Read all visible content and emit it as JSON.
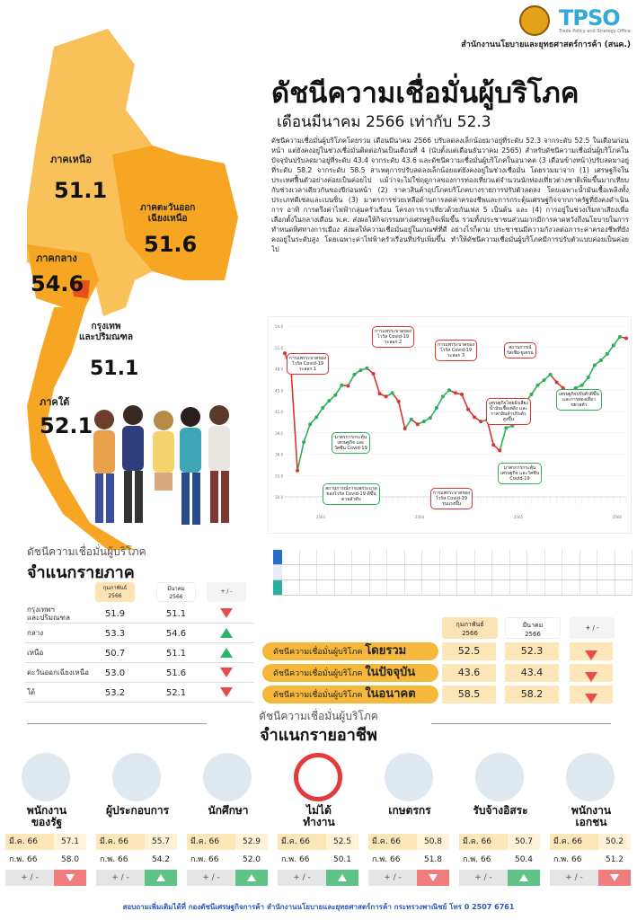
{
  "header": {
    "logo_text": "TPSO",
    "logo_sub": "Trade Policy and Strategy Office",
    "agency": "สำนักงานนโยบายและยุทธศาสตร์การค้า (สนค.)"
  },
  "title": "ดัชนีความเชื่อมั่นผู้บริโภค",
  "subtitle": "เดือนมีนาคม 2566 เท่ากับ 52.3",
  "body": "ดัชนีความเชื่อมั่นผู้บริโภคโดยรวม เดือนมีนาคม 2566 ปรับลดลงเล็กน้อยมาอยู่ที่ระดับ 52.3 จากระดับ 52.5 ในเดือนก่อนหน้า แต่ยังคงอยู่ในช่วงเชื่อมั่นติดต่อกันเป็นเดือนที่ 4 (นับตั้งแต่เดือนธันวาคม 2565) สำหรับดัชนีความเชื่อมั่นผู้บริโภคในปัจจุบันปรับลดมาอยู่ที่ระดับ 43.4 จากระดับ 43.6 และดัชนีความเชื่อมั่นผู้บริโภคในอนาคต (3 เดือนข้างหน้า)ปรับลดมาอยู่ที่ระดับ 58.2 จากระดับ 58.5 สาเหตุการปรับลดลงเล็กน้อยแต่ยังคงอยู่ในช่วงเชื่อมั่น โดยรวมมาจาก (1) เศรษฐกิจในประเทศฟื้นตัวอย่างค่อยเป็นค่อยไป แม้ว่าจะไม่ใช่ฤดูกาลของการท่องเที่ยวแต่จำนวนนักท่องเที่ยวต่างชาติเพิ่มขึ้นมากเทียบกับช่วงเวลาเดียวกันของปีก่อนหน้า (2) ราคาสินค้าอุปโภคบริโภคบางรายการปรับตัวลดลง โดยเฉพาะน้ำมันเชื้อเพลิงทั้งประเภทดีเซลและเบนซิน (3) มาตรการช่วยเหลือด้านการลดค่าครองชีพและการกระตุ้นเศรษฐกิจจากภาครัฐที่ยังคงดำเนินการ อาทิ การตรึงค่าไฟฟ้ากลุ่มครัวเรือน โครงการเราเที่ยวด้วยกันเฟส 5 เป็นต้น และ (4) การอยู่ในช่วงเริ่มหาเสียงเพื่อเลือกตั้งในกลางเดือน พ.ค. ส่งผลให้กิจกรรมทางเศรษฐกิจเพิ่มขึ้น รวมทั้งประชาชนส่วนมากมีการคาดหวังถึงนโยบายในการทำหนดทิศทางการเมือง ส่งผลให้ความเชื่อมั่นอยู่ในเกณฑ์ที่ดี อย่างไรก็ตาม ประชาชนมีความกังวลต่อภาระค่าครองชีพที่ยังคงอยู่ในระดับสูง โดยเฉพาะค่าไฟฟ้าครัวเรือนที่ปรับเพิ่มขึ้น ทำให้ดัชนีความเชื่อมั่นผู้บริโภคมีการปรับตัวแบบค่อยเป็นค่อยไป",
  "map": {
    "north": {
      "label": "ภาคเหนือ",
      "value": "51.1"
    },
    "northeast": {
      "label": "ภาคตะวันออก\nเฉียงเหนือ",
      "value": "51.6"
    },
    "central": {
      "label": "ภาคกลาง",
      "value": "54.6"
    },
    "bangkok": {
      "label": "กรุงเทพ\nและปริมณฑล",
      "value": "51.1"
    },
    "south": {
      "label": "ภาคใต้",
      "value": "52.1"
    }
  },
  "chart_data": {
    "type": "line",
    "ylim": [
      30.0,
      54.0
    ],
    "yticks": [
      "30.0",
      "33.0",
      "36.0",
      "39.0",
      "42.0",
      "45.0",
      "48.0",
      "51.0",
      "54.0"
    ],
    "period_labels": [
      "2563",
      "2564",
      "2565",
      "2566"
    ],
    "values": [
      50.2,
      47.8,
      33.7,
      37.7,
      40.2,
      41.2,
      42.5,
      43.5,
      44.3,
      45.7,
      45.6,
      47.2,
      47.8,
      48.1,
      47.3,
      44.5,
      44.1,
      44.6,
      43.4,
      39.6,
      40.9,
      40.2,
      40.6,
      41.1,
      42.5,
      44.1,
      45.0,
      44.6,
      44.4,
      42.3,
      41.2,
      40.6,
      40.8,
      37.3,
      36.5,
      39.7,
      40.0,
      42.2,
      43.2,
      44.4,
      45.7,
      46.4,
      47.2,
      46.1,
      45.3,
      44.7,
      45.3,
      45.7,
      46.8,
      48.5,
      49.2,
      50.1,
      51.3,
      52.5,
      52.3
    ],
    "annotations": [
      {
        "text": "การแพร่ระบาดของ\nไวรัส Covid-19\nระลอก 1",
        "color": "red"
      },
      {
        "text": "การแพร่ระบาดของ\nไวรัส Covid-19\nระลอก 2",
        "color": "red"
      },
      {
        "text": "การแพร่ระบาดของ\nไวรัส Covid-19\nระลอก 3",
        "color": "red"
      },
      {
        "text": "สถานการณ์\nรัสเซีย-ยูเครน",
        "color": "red"
      },
      {
        "text": "มาตรการกระตุ้น\nเศรษฐกิจ และ\nวัคซีน Covid-19",
        "color": "green"
      },
      {
        "text": "สถานการณ์การแพร่ระบาด\nของไวรัส Covid-19 ดีขึ้น\nตามลำดับ",
        "color": "green"
      },
      {
        "text": "การแพร่ระบาดของ\nไวรัส Covid-19\nรุนแรงขึ้น",
        "color": "red"
      },
      {
        "text": "เศรษฐกิจไทยยังเสี่ยง\nน้ำมันเชื้อเพลิง และ\nราคาสินค้าปรับตัว\nสูงขึ้น",
        "color": "red"
      },
      {
        "text": "มาตรการกระตุ้น\nเศรษฐกิจ และวัคซีน\nCovid-19",
        "color": "green"
      },
      {
        "text": "เศรษฐกิจปรับตัวดีขึ้น\nและการท่องเที่ยว\nขยายตัว",
        "color": "green"
      }
    ]
  },
  "region": {
    "heading1": "ดัชนีความเชื่อมั่นผู้บริโภค",
    "heading2": "จำแนกรายภาค",
    "col_prev": "กุมภาพันธ์\n2566",
    "col_cur": "มีนาคม\n2566",
    "col_change": "+ / -",
    "rows": [
      {
        "name": "กรุงเทพฯ\nและปริมณฑล",
        "prev": "51.9",
        "cur": "51.1",
        "trend": "down"
      },
      {
        "name": "กลาง",
        "prev": "53.3",
        "cur": "54.6",
        "trend": "up"
      },
      {
        "name": "เหนือ",
        "prev": "50.7",
        "cur": "51.1",
        "trend": "up"
      },
      {
        "name": "ตะวันออกเฉียงเหนือ",
        "prev": "53.0",
        "cur": "51.6",
        "trend": "down"
      },
      {
        "name": "ใต้",
        "prev": "53.2",
        "cur": "52.1",
        "trend": "down"
      }
    ]
  },
  "overall": {
    "col_prev": "กุมภาพันธ์\n2566",
    "col_cur": "มีนาคม\n2566",
    "col_change": "+ / -",
    "prefix": "ดัชนีความเชื่อมั่นผู้บริโภค",
    "rows": [
      {
        "label": "โดยรวม",
        "prev": "52.5",
        "cur": "52.3",
        "trend": "down"
      },
      {
        "label": "ในปัจจุบัน",
        "prev": "43.6",
        "cur": "43.4",
        "trend": "down"
      },
      {
        "label": "ในอนาคต",
        "prev": "58.5",
        "cur": "58.2",
        "trend": "down"
      }
    ]
  },
  "occupation": {
    "heading1": "ดัชนีความเชื่อมั่นผู้บริโภค",
    "heading2": "จำแนกรายอาชีพ",
    "row_cur": "มี.ค. 66",
    "row_prev": "ก.พ. 66",
    "row_change": "+ / -",
    "items": [
      {
        "label": "พนักงาน\nของรัฐ",
        "cur": "57.1",
        "prev": "58.0",
        "trend": "down",
        "icon": "government-officer-icon"
      },
      {
        "label": "ผู้ประกอบการ",
        "cur": "55.7",
        "prev": "54.2",
        "trend": "up",
        "icon": "entrepreneur-icon"
      },
      {
        "label": "นักศึกษา",
        "cur": "52.9",
        "prev": "52.0",
        "trend": "up",
        "icon": "student-icon"
      },
      {
        "label": "ไม่ได้\nทำงาน",
        "cur": "52.5",
        "prev": "50.1",
        "trend": "up",
        "icon": "unemployed-icon"
      },
      {
        "label": "เกษตรกร",
        "cur": "50.8",
        "prev": "51.8",
        "trend": "down",
        "icon": "farmer-icon"
      },
      {
        "label": "รับจ้างอิสระ",
        "cur": "50.7",
        "prev": "50.4",
        "trend": "up",
        "icon": "freelancer-icon"
      },
      {
        "label": "พนักงาน\nเอกชน",
        "cur": "50.2",
        "prev": "51.2",
        "trend": "down",
        "icon": "private-employee-icon"
      }
    ]
  },
  "footer": "สอบถามเพิ่มเติมได้ที่ กองดัชนีเศรษฐกิจการค้า สำนักงานนโยบายและยุทธศาสตร์การค้า กระทรวงพาณิชย์ โทร 0 2507 6761"
}
